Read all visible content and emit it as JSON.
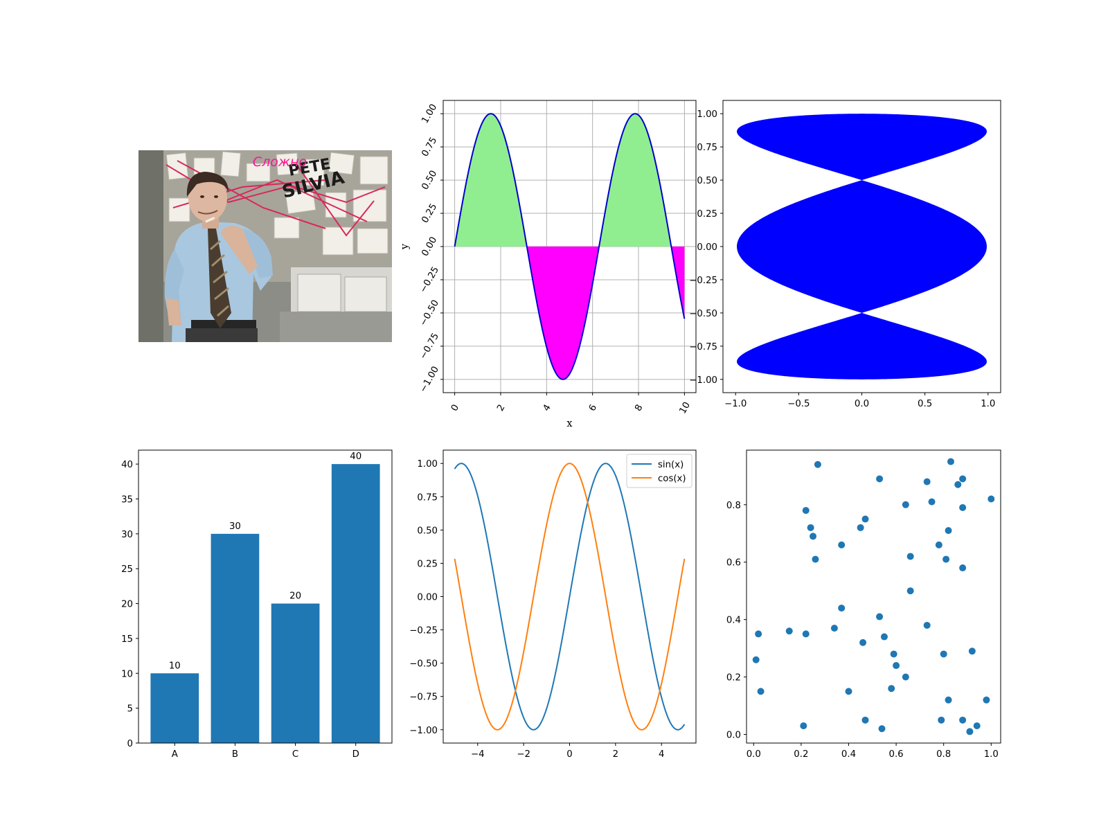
{
  "colors": {
    "tab_blue": "#1f77b4",
    "tab_orange": "#ff7f0e",
    "fill_positive": "#90ee90",
    "fill_negative": "#ff00ff",
    "sine_line": "#0000cd",
    "lissajous_fill": "#0000ff",
    "meme_caption": "#ff1493"
  },
  "meme_image": {
    "caption": "Сложно",
    "scrawl": "PETE SILVIA"
  },
  "chart_data": [
    {
      "id": "filled-sine",
      "type": "area",
      "function": "y = sin(x)",
      "x_range": [
        0,
        10
      ],
      "fill_above_zero_color": "#90ee90",
      "fill_below_zero_color": "#ff00ff",
      "line_color": "#0000cd",
      "xlabel": "x",
      "ylabel": "y",
      "xlim": [
        -0.5,
        10.5
      ],
      "ylim": [
        -1.1,
        1.1
      ],
      "xticks": [
        "0",
        "2",
        "4",
        "6",
        "8",
        "10"
      ],
      "yticks": [
        "−1.00",
        "−0.75",
        "−0.50",
        "−0.25",
        "0.00",
        "0.25",
        "0.50",
        "0.75",
        "1.00"
      ],
      "tick_label_rotation": "rotated",
      "grid": true
    },
    {
      "id": "lissajous",
      "type": "area",
      "function": "x = sin(t), y = sin(2t)·… filled lobes, |y| ≤ 1",
      "xlim": [
        -1.1,
        1.1
      ],
      "ylim": [
        -1.1,
        1.1
      ],
      "xticks": [
        "−1.0",
        "−0.5",
        "0.0",
        "0.5",
        "1.0"
      ],
      "yticks": [
        "−1.00",
        "−0.75",
        "−0.50",
        "−0.25",
        "0.00",
        "0.25",
        "0.50",
        "0.75",
        "1.00"
      ],
      "fill_color": "#0000ff",
      "grid": false
    },
    {
      "id": "bar",
      "type": "bar",
      "categories": [
        "A",
        "B",
        "C",
        "D"
      ],
      "values": [
        10,
        30,
        20,
        40
      ],
      "data_labels": [
        "10",
        "30",
        "20",
        "40"
      ],
      "ylim": [
        0,
        42
      ],
      "yticks": [
        "0",
        "5",
        "10",
        "15",
        "20",
        "25",
        "30",
        "35",
        "40"
      ],
      "color": "#1f77b4",
      "grid": false
    },
    {
      "id": "sin-cos",
      "type": "line",
      "x_range": [
        -5,
        5
      ],
      "series": [
        {
          "name": "sin(x)",
          "function": "sin",
          "color": "#1f77b4"
        },
        {
          "name": "cos(x)",
          "function": "cos",
          "color": "#ff7f0e"
        }
      ],
      "xlim": [
        -5.5,
        5.5
      ],
      "ylim": [
        -1.1,
        1.1
      ],
      "xticks": [
        "−4",
        "−2",
        "0",
        "2",
        "4"
      ],
      "yticks": [
        "−1.00",
        "−0.75",
        "−0.50",
        "−0.25",
        "0.00",
        "0.25",
        "0.50",
        "0.75",
        "1.00"
      ],
      "legend": "top-right",
      "grid": false
    },
    {
      "id": "scatter",
      "type": "scatter",
      "color": "#1f77b4",
      "xlim": [
        -0.03,
        1.04
      ],
      "ylim": [
        -0.03,
        0.99
      ],
      "xticks": [
        "0.0",
        "0.2",
        "0.4",
        "0.6",
        "0.8",
        "1.0"
      ],
      "yticks": [
        "0.0",
        "0.2",
        "0.4",
        "0.6",
        "0.8"
      ],
      "grid": false,
      "points": [
        [
          0.27,
          0.94
        ],
        [
          0.83,
          0.95
        ],
        [
          0.53,
          0.89
        ],
        [
          0.73,
          0.88
        ],
        [
          0.88,
          0.89
        ],
        [
          0.86,
          0.87
        ],
        [
          0.75,
          0.81
        ],
        [
          0.64,
          0.8
        ],
        [
          0.88,
          0.79
        ],
        [
          1.0,
          0.82
        ],
        [
          0.22,
          0.78
        ],
        [
          0.24,
          0.72
        ],
        [
          0.25,
          0.69
        ],
        [
          0.45,
          0.72
        ],
        [
          0.47,
          0.75
        ],
        [
          0.82,
          0.71
        ],
        [
          0.37,
          0.66
        ],
        [
          0.78,
          0.66
        ],
        [
          0.66,
          0.62
        ],
        [
          0.81,
          0.61
        ],
        [
          0.26,
          0.61
        ],
        [
          0.88,
          0.58
        ],
        [
          0.66,
          0.5
        ],
        [
          0.37,
          0.44
        ],
        [
          0.53,
          0.41
        ],
        [
          0.73,
          0.38
        ],
        [
          0.02,
          0.35
        ],
        [
          0.15,
          0.36
        ],
        [
          0.22,
          0.35
        ],
        [
          0.34,
          0.37
        ],
        [
          0.55,
          0.34
        ],
        [
          0.46,
          0.32
        ],
        [
          0.92,
          0.29
        ],
        [
          0.59,
          0.28
        ],
        [
          0.8,
          0.28
        ],
        [
          0.01,
          0.26
        ],
        [
          0.6,
          0.24
        ],
        [
          0.64,
          0.2
        ],
        [
          0.58,
          0.16
        ],
        [
          0.4,
          0.15
        ],
        [
          0.03,
          0.15
        ],
        [
          0.82,
          0.12
        ],
        [
          0.98,
          0.12
        ],
        [
          0.47,
          0.05
        ],
        [
          0.79,
          0.05
        ],
        [
          0.88,
          0.05
        ],
        [
          0.94,
          0.03
        ],
        [
          0.21,
          0.03
        ],
        [
          0.54,
          0.02
        ],
        [
          0.91,
          0.01
        ]
      ]
    }
  ]
}
